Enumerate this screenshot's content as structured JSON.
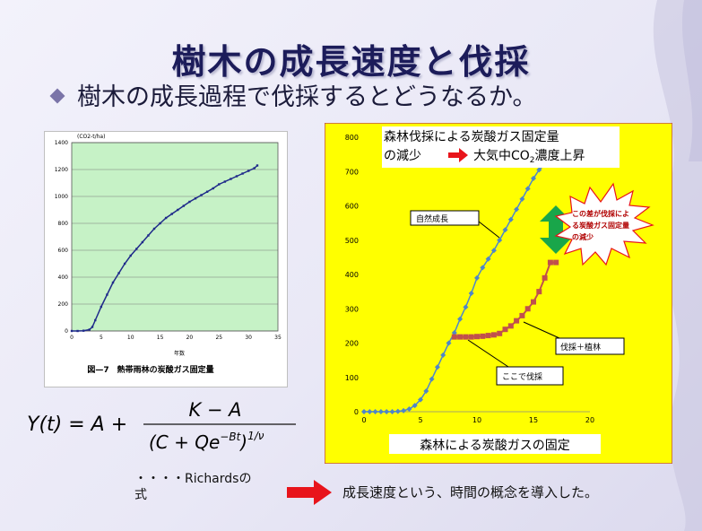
{
  "slide": {
    "title": "樹木の成長速度と伐採",
    "subtitle": "樹木の成長過程で伐採するとどうなるか。",
    "formula": {
      "lhs": "Y(t) = A +",
      "numerator": "K − A",
      "denominator": "(C + Qe",
      "exponent_inner": "−Bt",
      "power": "1/ν"
    },
    "richards_note_line1": "・・・・Richardsの",
    "richards_note_line2": "式",
    "conclusion": "成長速度という、時間の概念を導入した。",
    "arrow_color": "#e8141b"
  },
  "left_chart": {
    "caption": "図—7　熱帯雨林の炭酸ガス固定量",
    "chart_data": {
      "type": "line",
      "ylabel": "(CO2-t/ha)",
      "xlabel": "年数",
      "xlim": [
        0,
        35
      ],
      "ylim": [
        0,
        1400
      ],
      "x_ticks": [
        "0",
        "5",
        "10",
        "15",
        "20",
        "25",
        "30",
        "35"
      ],
      "y_ticks": [
        "0",
        "200",
        "400",
        "600",
        "800",
        "1000",
        "1200",
        "1400"
      ],
      "series": [
        {
          "x": [
            0,
            1,
            2,
            3,
            3.5,
            4,
            5,
            6,
            7,
            8,
            9,
            10,
            11,
            12,
            13,
            14,
            15,
            16,
            17,
            18,
            19,
            20,
            21,
            22,
            23,
            24,
            25,
            26,
            27,
            28,
            29,
            30,
            31,
            31.5
          ],
          "y": [
            0,
            0,
            2,
            10,
            30,
            80,
            180,
            270,
            360,
            430,
            500,
            560,
            610,
            660,
            710,
            760,
            800,
            840,
            870,
            900,
            930,
            960,
            985,
            1010,
            1035,
            1060,
            1090,
            1110,
            1130,
            1150,
            1170,
            1190,
            1210,
            1230
          ]
        }
      ],
      "plot_bg": "#c6f2c6",
      "line_color": "#1f2a8a"
    }
  },
  "right_chart": {
    "title_line1": "森林伐採による炭酸ガス固定量",
    "title_line2": "の減少",
    "title_effect": "大気中CO",
    "title_effect_sub": "2",
    "title_effect_tail": "濃度上昇",
    "caption": "森林による炭酸ガスの固定",
    "label_natural": "自然成長",
    "label_cut_here": "ここで伐採",
    "label_cut_plant": "伐採＋植林",
    "burst_line1": "この差が伐採によ",
    "burst_line2": "る炭酸ガス固定量",
    "burst_line3": "の減少",
    "chart_data": {
      "type": "line",
      "xlim": [
        0,
        20
      ],
      "ylim": [
        0,
        800
      ],
      "x_ticks": [
        "0",
        "5",
        "10",
        "15",
        "20"
      ],
      "y_ticks": [
        "0",
        "100",
        "200",
        "300",
        "400",
        "500",
        "600",
        "700",
        "800"
      ],
      "background": "#ffff00",
      "series": [
        {
          "x": [
            0,
            0.5,
            1,
            1.5,
            2,
            2.5,
            3,
            3.5,
            4,
            4.5,
            5,
            5.5,
            6,
            6.5,
            7,
            7.5,
            8,
            8.5,
            9,
            9.5,
            10,
            10.5,
            11,
            11.5,
            12,
            12.5,
            13,
            13.5,
            14,
            14.5,
            15,
            15.5,
            16,
            16.5,
            17
          ],
          "y": [
            0,
            0,
            0,
            0,
            0,
            0,
            1,
            3,
            8,
            18,
            35,
            60,
            95,
            130,
            165,
            200,
            230,
            270,
            305,
            345,
            390,
            420,
            445,
            470,
            500,
            530,
            560,
            590,
            620,
            650,
            680,
            705,
            720,
            735,
            750
          ],
          "color": "#4f86c8"
        },
        {
          "x": [
            8,
            8.5,
            9,
            9.5,
            10,
            10.5,
            11,
            11.5,
            12,
            12.5,
            13,
            13.5,
            14,
            14.5,
            15,
            15.5,
            16,
            16.5,
            17
          ],
          "y": [
            218,
            218,
            218,
            218,
            219,
            220,
            222,
            224,
            228,
            240,
            250,
            265,
            280,
            300,
            320,
            350,
            390,
            435,
            435
          ],
          "color": "#c0504d"
        }
      ]
    }
  }
}
